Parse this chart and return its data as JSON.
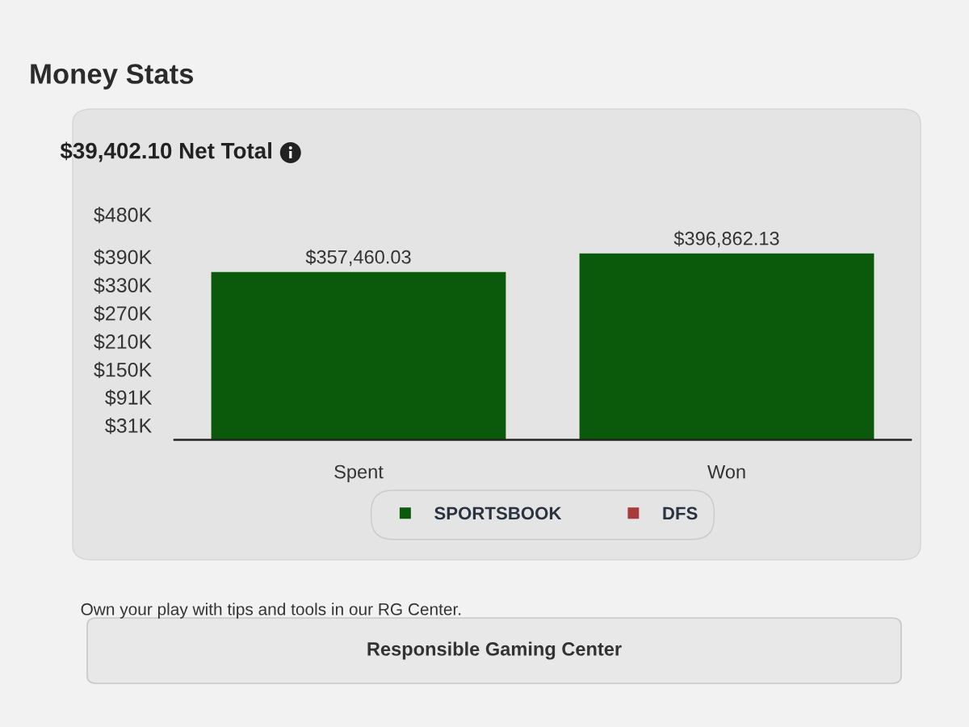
{
  "chart_data": {
    "type": "bar",
    "title": "Money Stats",
    "subtitle": "$39,402.10 Net Total",
    "categories": [
      "Spent",
      "Won"
    ],
    "series": [
      {
        "name": "SPORTSBOOK",
        "color": "#0b5a0b",
        "values": [
          357460.03,
          396862.13
        ],
        "value_labels": [
          "$357,460.03",
          "$396,862.13"
        ]
      },
      {
        "name": "DFS",
        "color": "#a83a3a",
        "values": [
          null,
          null
        ]
      }
    ],
    "ylim": [
      0,
      480000
    ],
    "yticks": [
      {
        "value": 31000,
        "label": "$31K"
      },
      {
        "value": 91000,
        "label": "$91K"
      },
      {
        "value": 150000,
        "label": "$150K"
      },
      {
        "value": 210000,
        "label": "$210K"
      },
      {
        "value": 270000,
        "label": "$270K"
      },
      {
        "value": 330000,
        "label": "$330K"
      },
      {
        "value": 390000,
        "label": "$390K"
      },
      {
        "value": 480000,
        "label": "$480K"
      }
    ],
    "grid": false,
    "legend": "bottom",
    "annotations": [
      "Own your play with tips and tools in our RG Center.",
      "Responsible Gaming Center"
    ]
  }
}
